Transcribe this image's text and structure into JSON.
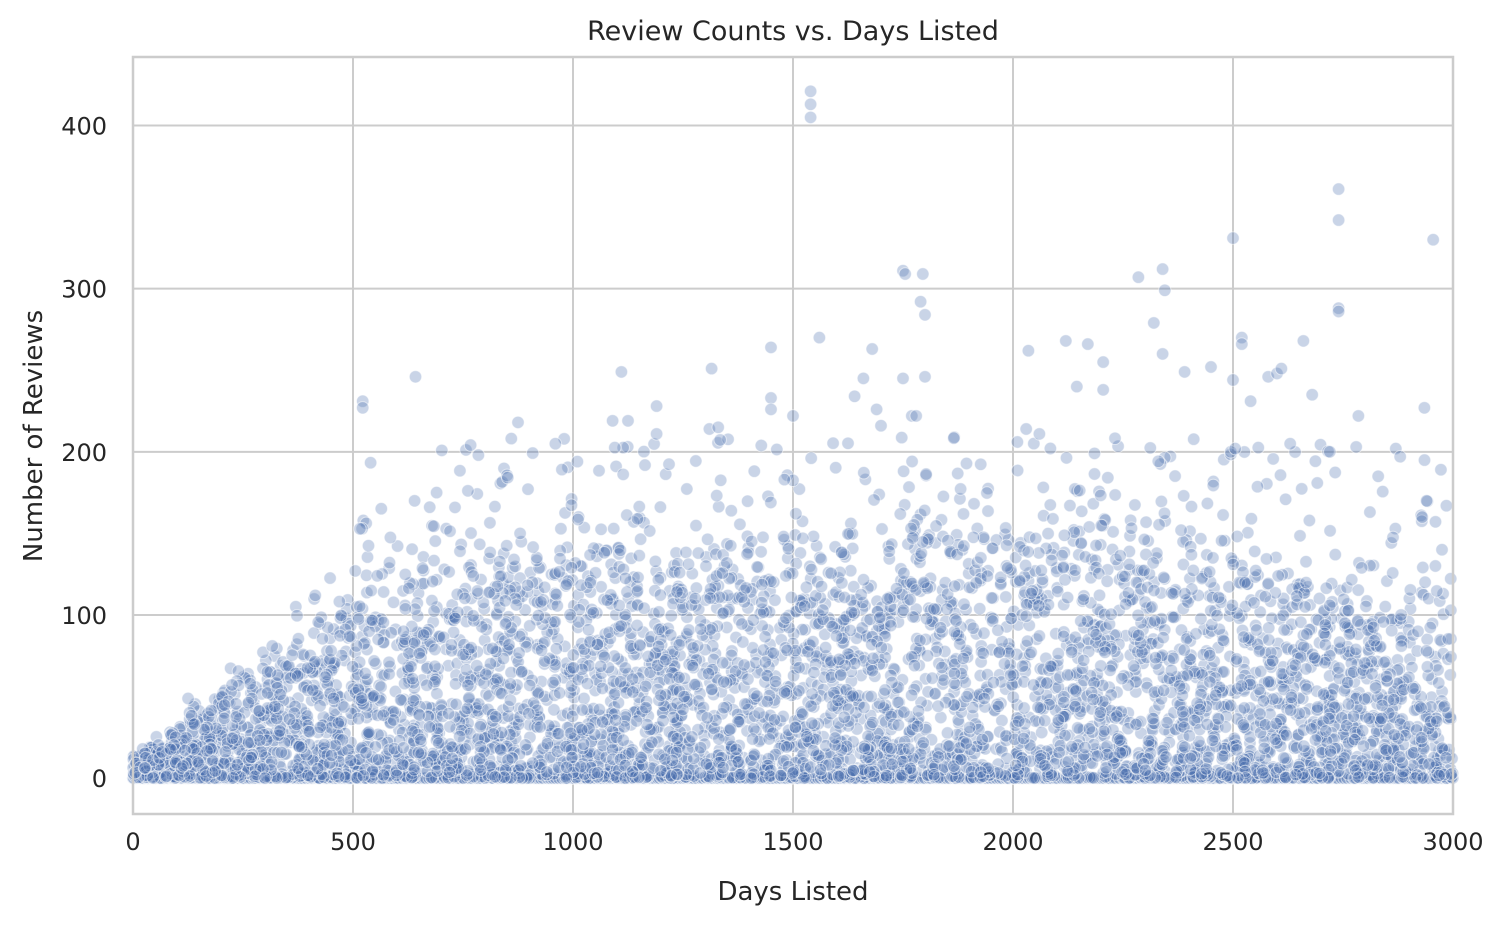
{
  "chart_data": {
    "type": "scatter",
    "title": "Review Counts vs. Days Listed",
    "xlabel": "Days Listed",
    "ylabel": "Number of Reviews",
    "xlim": [
      0,
      3000
    ],
    "ylim": [
      -22,
      442
    ],
    "xticks": [
      0,
      500,
      1000,
      1500,
      2000,
      2500,
      3000
    ],
    "yticks": [
      0,
      100,
      200,
      300,
      400
    ],
    "grid": true,
    "legend": "none",
    "marker_color": "#4c72b0",
    "marker_alpha": 0.3,
    "outliers": [
      [
        1540,
        421
      ],
      [
        1540,
        413
      ],
      [
        1540,
        405
      ],
      [
        2740,
        361
      ],
      [
        2740,
        342
      ],
      [
        2955,
        330
      ],
      [
        2500,
        331
      ],
      [
        1750,
        311
      ],
      [
        1755,
        309
      ],
      [
        1795,
        309
      ],
      [
        2340,
        312
      ],
      [
        2285,
        307
      ],
      [
        2345,
        299
      ],
      [
        1790,
        292
      ],
      [
        1800,
        284
      ],
      [
        2740,
        288
      ],
      [
        2740,
        286
      ],
      [
        2320,
        279
      ],
      [
        2035,
        262
      ],
      [
        2120,
        268
      ],
      [
        2170,
        266
      ],
      [
        2205,
        255
      ],
      [
        2340,
        260
      ],
      [
        2390,
        249
      ],
      [
        2450,
        252
      ],
      [
        2500,
        244
      ],
      [
        2520,
        270
      ],
      [
        2520,
        266
      ],
      [
        2580,
        246
      ],
      [
        2600,
        248
      ],
      [
        2610,
        251
      ],
      [
        2660,
        268
      ],
      [
        2680,
        235
      ],
      [
        2935,
        227
      ],
      [
        2785,
        222
      ],
      [
        522,
        231
      ],
      [
        522,
        227
      ],
      [
        642,
        246
      ],
      [
        1110,
        249
      ],
      [
        1315,
        251
      ],
      [
        1450,
        264
      ],
      [
        1560,
        270
      ],
      [
        1680,
        263
      ],
      [
        1660,
        245
      ],
      [
        1750,
        245
      ],
      [
        1800,
        246
      ],
      [
        2145,
        240
      ],
      [
        2205,
        238
      ],
      [
        1190,
        228
      ],
      [
        1450,
        233
      ],
      [
        1450,
        226
      ],
      [
        1500,
        222
      ],
      [
        875,
        218
      ],
      [
        1090,
        219
      ],
      [
        1125,
        219
      ],
      [
        1190,
        211
      ],
      [
        1310,
        214
      ],
      [
        1330,
        215
      ],
      [
        1770,
        222
      ],
      [
        1780,
        222
      ],
      [
        1690,
        226
      ],
      [
        1640,
        234
      ],
      [
        1700,
        216
      ],
      [
        980,
        208
      ],
      [
        960,
        205
      ],
      [
        1010,
        194
      ],
      [
        785,
        198
      ],
      [
        690,
        175
      ],
      [
        640,
        170
      ],
      [
        2030,
        214
      ],
      [
        2060,
        211
      ],
      [
        2010,
        206
      ],
      [
        2495,
        200
      ],
      [
        2505,
        202
      ],
      [
        2540,
        231
      ],
      [
        2630,
        205
      ],
      [
        2720,
        200
      ],
      [
        2780,
        203
      ],
      [
        2870,
        202
      ],
      [
        2880,
        197
      ],
      [
        2830,
        185
      ],
      [
        2985,
        167
      ],
      [
        2975,
        140
      ],
      [
        2960,
        130
      ],
      [
        2930,
        160
      ],
      [
        2940,
        170
      ]
    ]
  }
}
